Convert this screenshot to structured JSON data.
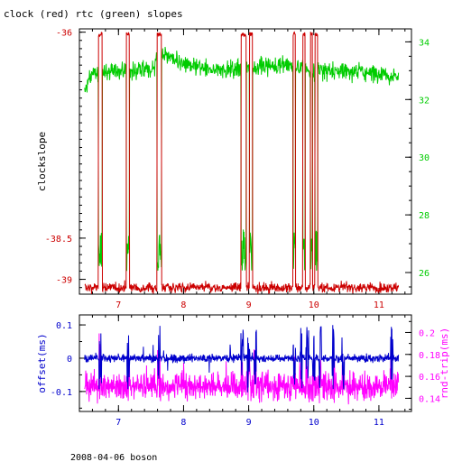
{
  "chart_data": [
    {
      "type": "line",
      "title": "clock (red) rtc (green) slopes",
      "xlim": [
        6.4,
        11.5
      ],
      "x_ticks": [
        7,
        8,
        9,
        10,
        11
      ],
      "x_tick_labels": [
        "7",
        "8",
        "9",
        "10",
        "11"
      ],
      "y_left": {
        "label": "clockslope",
        "lim": [
          -39.18,
          -35.96
        ],
        "ticks": [
          -39,
          -38.5,
          -36
        ],
        "tick_labels": [
          "-39",
          "-38.5",
          "-36"
        ],
        "color": "#cc0000"
      },
      "y_right": {
        "lim": [
          25.25,
          34.45
        ],
        "ticks": [
          26,
          28,
          30,
          32,
          34
        ],
        "tick_labels": [
          "26",
          "28",
          "30",
          "32",
          "34"
        ],
        "color": "#00cc00"
      },
      "series": [
        {
          "color": "#cc0000",
          "axis": "left",
          "baseline": -39.1,
          "high": -36.0,
          "noise": 0.03,
          "x_start": 6.48,
          "x_end": 11.3,
          "high_intervals": [
            [
              6.69,
              6.75
            ],
            [
              7.12,
              7.17
            ],
            [
              7.59,
              7.66
            ],
            [
              8.88,
              8.96
            ],
            [
              9.01,
              9.06
            ],
            [
              9.68,
              9.72
            ],
            [
              9.83,
              9.87
            ],
            [
              9.95,
              9.98
            ],
            [
              10.02,
              10.06
            ]
          ]
        },
        {
          "color": "#00cc00",
          "axis": "right",
          "level_points": [
            [
              6.48,
              32.3
            ],
            [
              6.6,
              32.9
            ],
            [
              7.0,
              33.0
            ],
            [
              7.5,
              33.0
            ],
            [
              7.7,
              33.6
            ],
            [
              8.0,
              33.2
            ],
            [
              8.5,
              33.0
            ],
            [
              9.0,
              33.1
            ],
            [
              9.5,
              33.2
            ],
            [
              10.0,
              33.0
            ],
            [
              10.5,
              33.0
            ],
            [
              11.0,
              32.9
            ],
            [
              11.3,
              32.8
            ]
          ],
          "noise": 0.15,
          "drop_to": 26.0
        }
      ]
    },
    {
      "type": "line",
      "xlim": [
        6.4,
        11.5
      ],
      "x_ticks": [
        7,
        8,
        9,
        10,
        11
      ],
      "x_tick_labels": [
        "7",
        "8",
        "9",
        "10",
        "11"
      ],
      "y_left": {
        "label": "offset(ms)",
        "lim": [
          -0.16,
          0.13
        ],
        "ticks": [
          -0.1,
          0,
          0.1
        ],
        "tick_labels": [
          "-0.1",
          "0",
          "0.1"
        ],
        "color": "#0000cc"
      },
      "y_right": {
        "label": "rnd-trip(ms)",
        "lim": [
          0.128,
          0.216
        ],
        "ticks": [
          0.14,
          0.16,
          0.18,
          0.2
        ],
        "tick_labels": [
          "0.14",
          "0.16",
          "0.18",
          "0.2"
        ],
        "color": "#ff00ff"
      },
      "series": [
        {
          "color": "#ff00ff",
          "axis": "right",
          "base": 0.151,
          "noise": 0.006
        },
        {
          "color": "#0000cc",
          "axis": "left",
          "base": 0.0,
          "noise": 0.006
        }
      ]
    }
  ],
  "footer": "2008-04-06 boson"
}
